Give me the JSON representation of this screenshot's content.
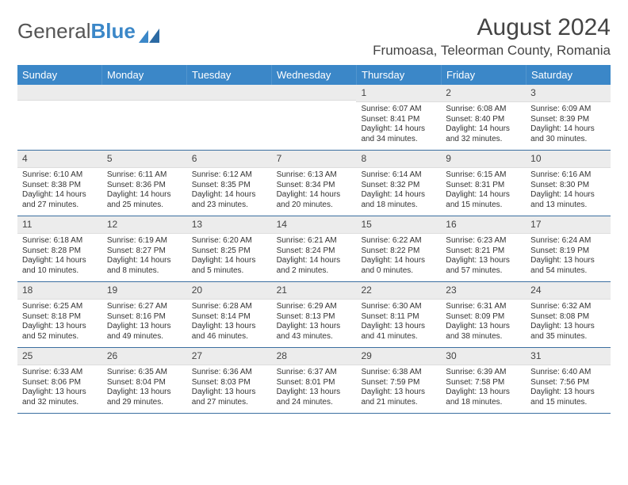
{
  "logo": {
    "textA": "General",
    "textB": "Blue"
  },
  "header": {
    "title": "August 2024",
    "location": "Frumoasa, Teleorman County, Romania"
  },
  "dayNames": [
    "Sunday",
    "Monday",
    "Tuesday",
    "Wednesday",
    "Thursday",
    "Friday",
    "Saturday"
  ],
  "colors": {
    "headerBar": "#3b87c8",
    "rowDivider": "#3b6fa0",
    "dayNumBg": "#ececec"
  },
  "weeks": [
    [
      {
        "num": "",
        "lines": []
      },
      {
        "num": "",
        "lines": []
      },
      {
        "num": "",
        "lines": []
      },
      {
        "num": "",
        "lines": []
      },
      {
        "num": "1",
        "lines": [
          "Sunrise: 6:07 AM",
          "Sunset: 8:41 PM",
          "Daylight: 14 hours",
          "and 34 minutes."
        ]
      },
      {
        "num": "2",
        "lines": [
          "Sunrise: 6:08 AM",
          "Sunset: 8:40 PM",
          "Daylight: 14 hours",
          "and 32 minutes."
        ]
      },
      {
        "num": "3",
        "lines": [
          "Sunrise: 6:09 AM",
          "Sunset: 8:39 PM",
          "Daylight: 14 hours",
          "and 30 minutes."
        ]
      }
    ],
    [
      {
        "num": "4",
        "lines": [
          "Sunrise: 6:10 AM",
          "Sunset: 8:38 PM",
          "Daylight: 14 hours",
          "and 27 minutes."
        ]
      },
      {
        "num": "5",
        "lines": [
          "Sunrise: 6:11 AM",
          "Sunset: 8:36 PM",
          "Daylight: 14 hours",
          "and 25 minutes."
        ]
      },
      {
        "num": "6",
        "lines": [
          "Sunrise: 6:12 AM",
          "Sunset: 8:35 PM",
          "Daylight: 14 hours",
          "and 23 minutes."
        ]
      },
      {
        "num": "7",
        "lines": [
          "Sunrise: 6:13 AM",
          "Sunset: 8:34 PM",
          "Daylight: 14 hours",
          "and 20 minutes."
        ]
      },
      {
        "num": "8",
        "lines": [
          "Sunrise: 6:14 AM",
          "Sunset: 8:32 PM",
          "Daylight: 14 hours",
          "and 18 minutes."
        ]
      },
      {
        "num": "9",
        "lines": [
          "Sunrise: 6:15 AM",
          "Sunset: 8:31 PM",
          "Daylight: 14 hours",
          "and 15 minutes."
        ]
      },
      {
        "num": "10",
        "lines": [
          "Sunrise: 6:16 AM",
          "Sunset: 8:30 PM",
          "Daylight: 14 hours",
          "and 13 minutes."
        ]
      }
    ],
    [
      {
        "num": "11",
        "lines": [
          "Sunrise: 6:18 AM",
          "Sunset: 8:28 PM",
          "Daylight: 14 hours",
          "and 10 minutes."
        ]
      },
      {
        "num": "12",
        "lines": [
          "Sunrise: 6:19 AM",
          "Sunset: 8:27 PM",
          "Daylight: 14 hours",
          "and 8 minutes."
        ]
      },
      {
        "num": "13",
        "lines": [
          "Sunrise: 6:20 AM",
          "Sunset: 8:25 PM",
          "Daylight: 14 hours",
          "and 5 minutes."
        ]
      },
      {
        "num": "14",
        "lines": [
          "Sunrise: 6:21 AM",
          "Sunset: 8:24 PM",
          "Daylight: 14 hours",
          "and 2 minutes."
        ]
      },
      {
        "num": "15",
        "lines": [
          "Sunrise: 6:22 AM",
          "Sunset: 8:22 PM",
          "Daylight: 14 hours",
          "and 0 minutes."
        ]
      },
      {
        "num": "16",
        "lines": [
          "Sunrise: 6:23 AM",
          "Sunset: 8:21 PM",
          "Daylight: 13 hours",
          "and 57 minutes."
        ]
      },
      {
        "num": "17",
        "lines": [
          "Sunrise: 6:24 AM",
          "Sunset: 8:19 PM",
          "Daylight: 13 hours",
          "and 54 minutes."
        ]
      }
    ],
    [
      {
        "num": "18",
        "lines": [
          "Sunrise: 6:25 AM",
          "Sunset: 8:18 PM",
          "Daylight: 13 hours",
          "and 52 minutes."
        ]
      },
      {
        "num": "19",
        "lines": [
          "Sunrise: 6:27 AM",
          "Sunset: 8:16 PM",
          "Daylight: 13 hours",
          "and 49 minutes."
        ]
      },
      {
        "num": "20",
        "lines": [
          "Sunrise: 6:28 AM",
          "Sunset: 8:14 PM",
          "Daylight: 13 hours",
          "and 46 minutes."
        ]
      },
      {
        "num": "21",
        "lines": [
          "Sunrise: 6:29 AM",
          "Sunset: 8:13 PM",
          "Daylight: 13 hours",
          "and 43 minutes."
        ]
      },
      {
        "num": "22",
        "lines": [
          "Sunrise: 6:30 AM",
          "Sunset: 8:11 PM",
          "Daylight: 13 hours",
          "and 41 minutes."
        ]
      },
      {
        "num": "23",
        "lines": [
          "Sunrise: 6:31 AM",
          "Sunset: 8:09 PM",
          "Daylight: 13 hours",
          "and 38 minutes."
        ]
      },
      {
        "num": "24",
        "lines": [
          "Sunrise: 6:32 AM",
          "Sunset: 8:08 PM",
          "Daylight: 13 hours",
          "and 35 minutes."
        ]
      }
    ],
    [
      {
        "num": "25",
        "lines": [
          "Sunrise: 6:33 AM",
          "Sunset: 8:06 PM",
          "Daylight: 13 hours",
          "and 32 minutes."
        ]
      },
      {
        "num": "26",
        "lines": [
          "Sunrise: 6:35 AM",
          "Sunset: 8:04 PM",
          "Daylight: 13 hours",
          "and 29 minutes."
        ]
      },
      {
        "num": "27",
        "lines": [
          "Sunrise: 6:36 AM",
          "Sunset: 8:03 PM",
          "Daylight: 13 hours",
          "and 27 minutes."
        ]
      },
      {
        "num": "28",
        "lines": [
          "Sunrise: 6:37 AM",
          "Sunset: 8:01 PM",
          "Daylight: 13 hours",
          "and 24 minutes."
        ]
      },
      {
        "num": "29",
        "lines": [
          "Sunrise: 6:38 AM",
          "Sunset: 7:59 PM",
          "Daylight: 13 hours",
          "and 21 minutes."
        ]
      },
      {
        "num": "30",
        "lines": [
          "Sunrise: 6:39 AM",
          "Sunset: 7:58 PM",
          "Daylight: 13 hours",
          "and 18 minutes."
        ]
      },
      {
        "num": "31",
        "lines": [
          "Sunrise: 6:40 AM",
          "Sunset: 7:56 PM",
          "Daylight: 13 hours",
          "and 15 minutes."
        ]
      }
    ]
  ]
}
